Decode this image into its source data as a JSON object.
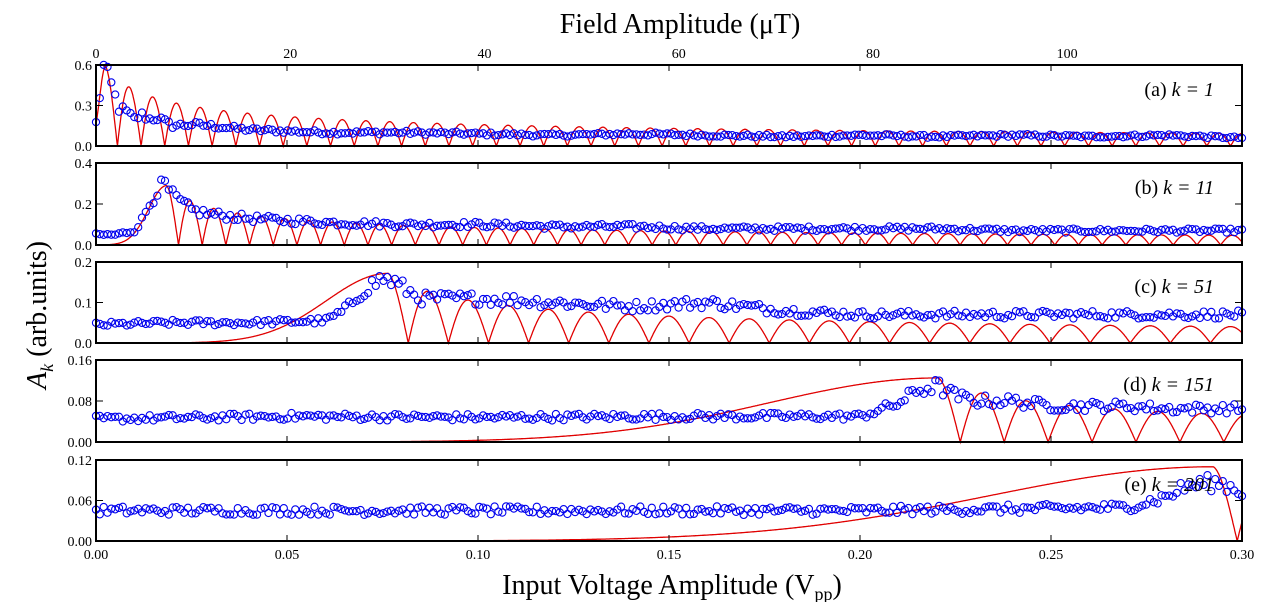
{
  "figure": {
    "top_axis_title": "Field Amplitude (μT)",
    "bottom_axis_title_main": "Input Voltage Amplitude (V",
    "bottom_axis_title_sub": "pp",
    "bottom_axis_title_close": ")",
    "ylabel_symbol": "A",
    "ylabel_subscript": "k",
    "ylabel_units": " (arb.units)"
  },
  "colors": {
    "data_points": "#0000ee",
    "fit_line": "#e00000"
  },
  "chart_data": {
    "type": "scatter",
    "shared_x": {
      "label": "Input Voltage Amplitude (Vpp)",
      "lim": [
        0.0,
        0.3
      ],
      "ticks": [
        0.0,
        0.05,
        0.1,
        0.15,
        0.2,
        0.25,
        0.3
      ],
      "tick_labels": [
        "0.00",
        "0.05",
        "0.10",
        "0.15",
        "0.20",
        "0.25",
        "0.30"
      ]
    },
    "top_x": {
      "label": "Field Amplitude (μT)",
      "lim": [
        0,
        118
      ],
      "ticks": [
        0,
        20,
        40,
        60,
        80,
        100
      ],
      "tick_labels": [
        "0",
        "20",
        "40",
        "60",
        "80",
        "100"
      ]
    },
    "panels": [
      {
        "label": "(a)",
        "k_label": "k = 1",
        "k": 1,
        "ylim": [
          0.0,
          0.6
        ],
        "yticks": [
          0.0,
          0.3,
          0.6
        ],
        "ytick_labels": [
          "0.0",
          "0.3",
          "0.6"
        ],
        "fit_peak_x": 0.0025,
        "fit_peak_y": 0.59,
        "fit_period": 0.0062,
        "fit_decay_exp": 0.55,
        "data_points_x": [
          0.0,
          0.002,
          0.004,
          0.006,
          0.008,
          0.01,
          0.012,
          0.014,
          0.016,
          0.018,
          0.02,
          0.025,
          0.03,
          0.04,
          0.05,
          0.06,
          0.08,
          0.1,
          0.12,
          0.14,
          0.16,
          0.18,
          0.2,
          0.22,
          0.24,
          0.26,
          0.28,
          0.3
        ],
        "data_points_y": [
          0.17,
          0.58,
          0.45,
          0.28,
          0.25,
          0.2,
          0.23,
          0.2,
          0.21,
          0.18,
          0.15,
          0.16,
          0.15,
          0.12,
          0.11,
          0.1,
          0.1,
          0.09,
          0.08,
          0.09,
          0.08,
          0.07,
          0.08,
          0.07,
          0.08,
          0.07,
          0.08,
          0.06
        ]
      },
      {
        "label": "(b)",
        "k_label": "k = 11",
        "k": 11,
        "ylim": [
          0.0,
          0.4
        ],
        "yticks": [
          0.0,
          0.2,
          0.4
        ],
        "ytick_labels": [
          "0.0",
          "0.2",
          "0.4"
        ],
        "fit_peak_x": 0.0185,
        "fit_peak_y": 0.29,
        "fit_period": 0.0062,
        "fit_decay_exp": 0.55,
        "data_points_x": [
          0.0,
          0.005,
          0.01,
          0.012,
          0.014,
          0.016,
          0.018,
          0.02,
          0.025,
          0.03,
          0.04,
          0.05,
          0.06,
          0.08,
          0.1,
          0.12,
          0.14,
          0.16,
          0.18,
          0.2,
          0.22,
          0.24,
          0.26,
          0.28,
          0.3
        ],
        "data_points_y": [
          0.05,
          0.05,
          0.07,
          0.12,
          0.2,
          0.27,
          0.29,
          0.24,
          0.17,
          0.15,
          0.13,
          0.12,
          0.11,
          0.1,
          0.1,
          0.09,
          0.09,
          0.08,
          0.08,
          0.08,
          0.08,
          0.07,
          0.07,
          0.07,
          0.07
        ]
      },
      {
        "label": "(c)",
        "k_label": "k = 51",
        "k": 51,
        "ylim": [
          0.0,
          0.2
        ],
        "yticks": [
          0.0,
          0.1,
          0.2
        ],
        "ytick_labels": [
          "0.0",
          "0.1",
          "0.2"
        ],
        "fit_peak_x": 0.0765,
        "fit_peak_y": 0.172,
        "fit_period": 0.0105,
        "fit_decay_exp": 0.55,
        "data_points_x": [
          0.0,
          0.02,
          0.04,
          0.06,
          0.065,
          0.07,
          0.075,
          0.078,
          0.085,
          0.1,
          0.12,
          0.14,
          0.16,
          0.18,
          0.2,
          0.22,
          0.24,
          0.26,
          0.28,
          0.3
        ],
        "data_points_y": [
          0.045,
          0.05,
          0.05,
          0.055,
          0.08,
          0.13,
          0.16,
          0.15,
          0.11,
          0.11,
          0.1,
          0.09,
          0.1,
          0.08,
          0.07,
          0.07,
          0.07,
          0.07,
          0.07,
          0.07
        ]
      },
      {
        "label": "(d)",
        "k_label": "k = 151",
        "k": 151,
        "ylim": [
          0.0,
          0.16
        ],
        "yticks": [
          0.0,
          0.08,
          0.16
        ],
        "ytick_labels": [
          "0.00",
          "0.08",
          "0.16"
        ],
        "fit_peak_x": 0.2205,
        "fit_peak_y": 0.125,
        "fit_period": 0.0115,
        "fit_decay_exp": 0.5,
        "data_points_x": [
          0.0,
          0.05,
          0.1,
          0.15,
          0.2,
          0.21,
          0.215,
          0.22,
          0.225,
          0.23,
          0.24,
          0.25,
          0.26,
          0.27,
          0.28,
          0.29,
          0.3
        ],
        "data_points_y": [
          0.045,
          0.05,
          0.048,
          0.05,
          0.05,
          0.075,
          0.1,
          0.11,
          0.09,
          0.08,
          0.08,
          0.07,
          0.07,
          0.07,
          0.065,
          0.065,
          0.065
        ]
      },
      {
        "label": "(e)",
        "k_label": "k = 201",
        "k": 201,
        "ylim": [
          0.0,
          0.12
        ],
        "yticks": [
          0.0,
          0.06,
          0.12
        ],
        "ytick_labels": [
          "0.00",
          "0.06",
          "0.12"
        ],
        "fit_peak_x": 0.2925,
        "fit_peak_y": 0.11,
        "fit_period": 0.0125,
        "fit_decay_exp": 0.5,
        "data_points_x": [
          0.0,
          0.05,
          0.1,
          0.15,
          0.2,
          0.25,
          0.27,
          0.28,
          0.285,
          0.29,
          0.295,
          0.3
        ],
        "data_points_y": [
          0.045,
          0.045,
          0.045,
          0.045,
          0.045,
          0.048,
          0.05,
          0.065,
          0.08,
          0.086,
          0.085,
          0.072
        ]
      }
    ]
  }
}
